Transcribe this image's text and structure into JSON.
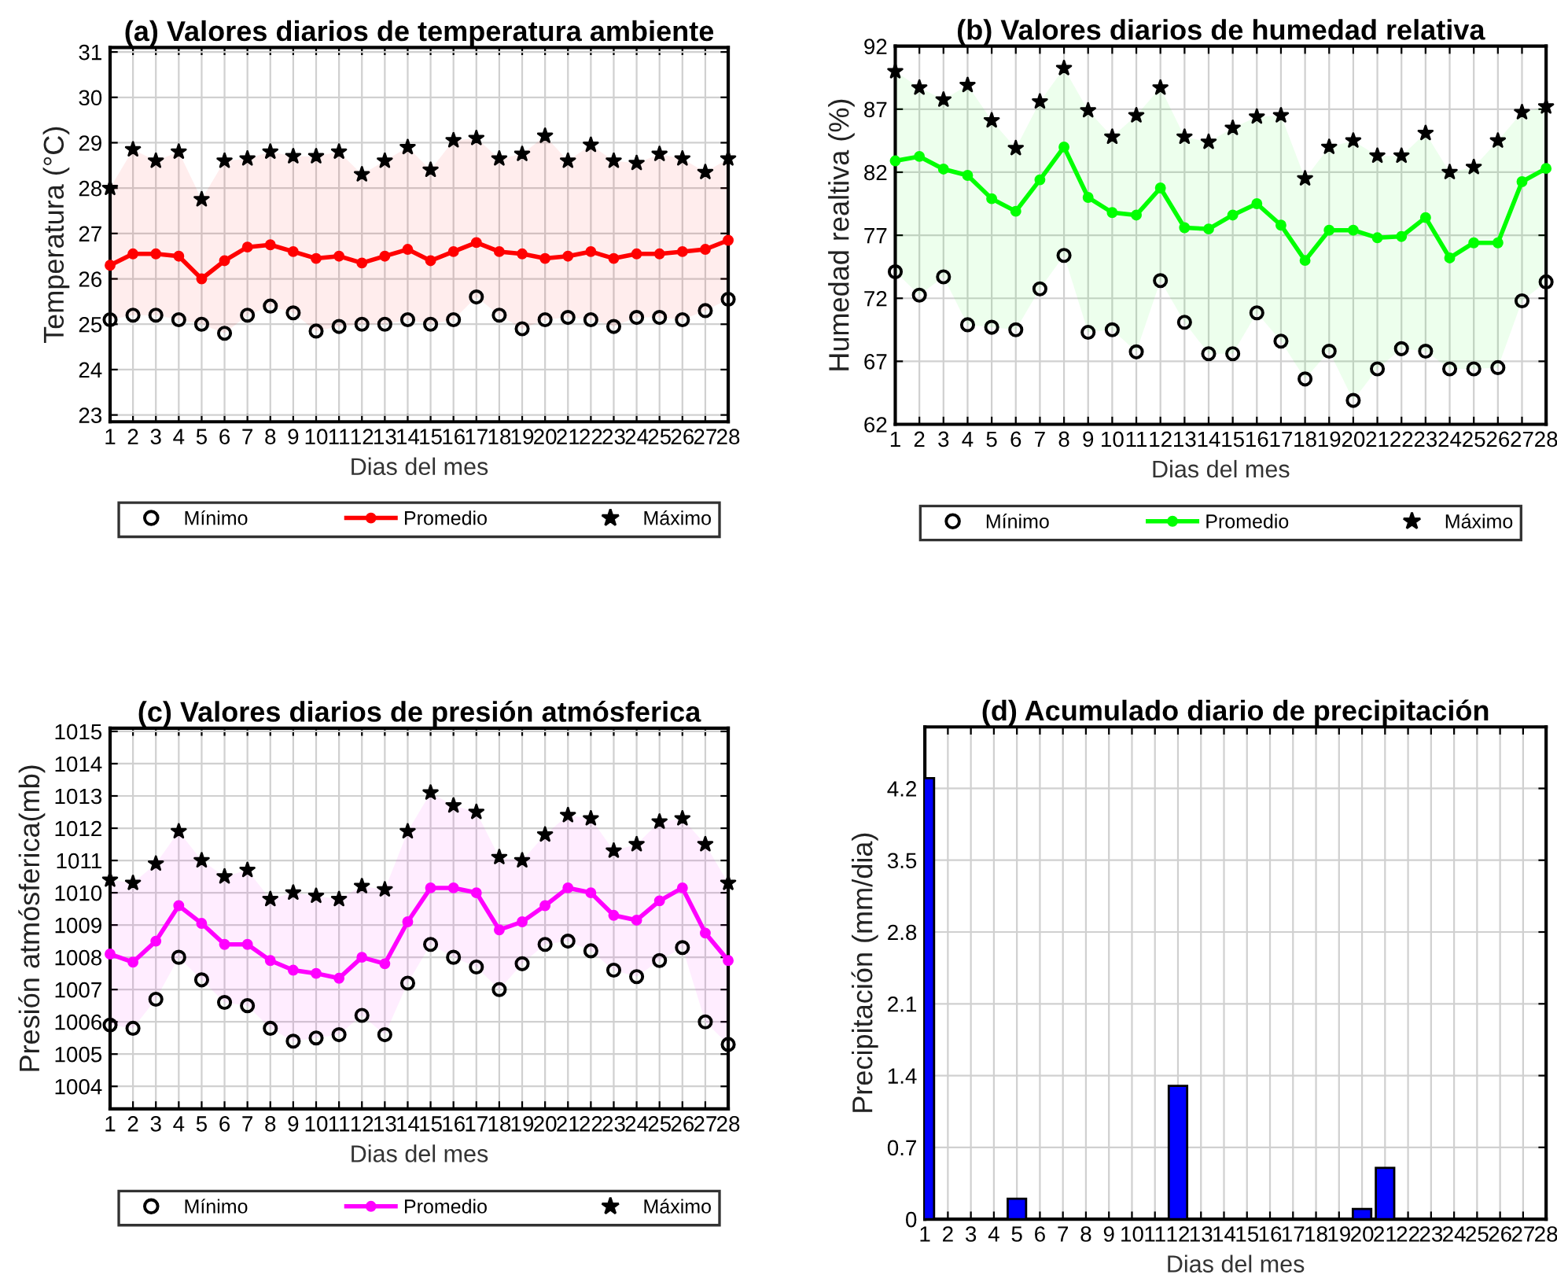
{
  "chart_data": [
    {
      "type": "line",
      "title": "(a) Valores diarios de temperatura ambiente",
      "xlabel": "Dias del mes",
      "ylabel": "Temperatura (°C)",
      "x": [
        1,
        2,
        3,
        4,
        5,
        6,
        7,
        8,
        9,
        10,
        11,
        12,
        13,
        14,
        15,
        16,
        17,
        18,
        19,
        20,
        21,
        22,
        23,
        24,
        25,
        26,
        27,
        28
      ],
      "xlim": [
        1,
        28
      ],
      "xticks": [
        1,
        2,
        3,
        4,
        5,
        6,
        7,
        8,
        9,
        10,
        11,
        12,
        13,
        14,
        15,
        16,
        17,
        18,
        19,
        20,
        21,
        22,
        23,
        24,
        25,
        26,
        27,
        28
      ],
      "ylim": [
        22.85,
        31.1
      ],
      "yticks": [
        23,
        24,
        25,
        26,
        27,
        28,
        29,
        30,
        31
      ],
      "grid": true,
      "legend": "bottom",
      "series": [
        {
          "name": "Mínimo",
          "type": "scatter",
          "marker": "circle",
          "color": "#000000",
          "values": [
            25.1,
            25.2,
            25.2,
            25.1,
            25.0,
            24.8,
            25.2,
            25.4,
            25.25,
            24.85,
            24.95,
            25.0,
            25.0,
            25.1,
            25.0,
            25.1,
            25.6,
            25.2,
            24.9,
            25.1,
            25.15,
            25.1,
            24.95,
            25.15,
            25.15,
            25.1,
            25.3,
            25.55
          ]
        },
        {
          "name": "Promedio",
          "type": "line",
          "marker": "circle",
          "color": "#ff0000",
          "values": [
            26.3,
            26.55,
            26.55,
            26.5,
            26.0,
            26.4,
            26.7,
            26.75,
            26.6,
            26.45,
            26.5,
            26.35,
            26.5,
            26.65,
            26.4,
            26.6,
            26.8,
            26.6,
            26.55,
            26.45,
            26.5,
            26.6,
            26.45,
            26.55,
            26.55,
            26.6,
            26.65,
            26.85
          ],
          "lower": [
            25.1,
            25.2,
            25.2,
            25.1,
            25.0,
            24.8,
            25.2,
            25.4,
            25.25,
            24.85,
            24.95,
            25.0,
            25.0,
            25.1,
            25.0,
            25.1,
            25.6,
            25.2,
            24.9,
            25.1,
            25.15,
            25.1,
            24.95,
            25.15,
            25.15,
            25.1,
            25.3,
            25.55
          ],
          "upper": [
            28.0,
            28.85,
            28.6,
            28.8,
            27.75,
            28.6,
            28.65,
            28.8,
            28.7,
            28.7,
            28.8,
            28.3,
            28.6,
            28.9,
            28.4,
            29.05,
            29.1,
            28.65,
            28.75,
            29.15,
            28.6,
            28.95,
            28.6,
            28.55,
            28.75,
            28.65,
            28.35,
            28.65
          ]
        },
        {
          "name": "Máximo",
          "type": "scatter",
          "marker": "star",
          "color": "#000000",
          "values": [
            28.0,
            28.85,
            28.6,
            28.8,
            27.75,
            28.6,
            28.65,
            28.8,
            28.7,
            28.7,
            28.8,
            28.3,
            28.6,
            28.9,
            28.4,
            29.05,
            29.1,
            28.65,
            28.75,
            29.15,
            28.6,
            28.95,
            28.6,
            28.55,
            28.75,
            28.65,
            28.35,
            28.65
          ]
        }
      ]
    },
    {
      "type": "line",
      "title": "(b) Valores diarios de humedad relativa",
      "xlabel": "Dias del mes",
      "ylabel": "Humedad realtiva (%)",
      "x": [
        1,
        2,
        3,
        4,
        5,
        6,
        7,
        8,
        9,
        10,
        11,
        12,
        13,
        14,
        15,
        16,
        17,
        18,
        19,
        20,
        21,
        22,
        23,
        24,
        25,
        26,
        27,
        28
      ],
      "xlim": [
        1,
        28
      ],
      "xticks": [
        1,
        2,
        3,
        4,
        5,
        6,
        7,
        8,
        9,
        10,
        11,
        12,
        13,
        14,
        15,
        16,
        17,
        18,
        19,
        20,
        21,
        22,
        23,
        24,
        25,
        26,
        27,
        28
      ],
      "ylim": [
        62,
        92
      ],
      "yticks": [
        62,
        67,
        72,
        77,
        82,
        87,
        92
      ],
      "grid": true,
      "legend": "bottom",
      "series": [
        {
          "name": "Mínimo",
          "type": "scatter",
          "marker": "circle",
          "color": "#000000",
          "values": [
            74.1,
            72.25,
            73.7,
            69.9,
            69.7,
            69.5,
            72.75,
            75.4,
            69.3,
            69.5,
            67.75,
            73.4,
            70.1,
            67.6,
            67.6,
            70.85,
            68.6,
            65.6,
            67.8,
            63.9,
            66.4,
            68.0,
            67.8,
            66.4,
            66.4,
            66.5,
            71.8,
            73.3
          ]
        },
        {
          "name": "Promedio",
          "type": "line",
          "marker": "circle",
          "color": "#00ff00",
          "values": [
            82.9,
            83.25,
            82.25,
            81.75,
            79.9,
            78.9,
            81.4,
            84.0,
            80.0,
            78.8,
            78.6,
            80.75,
            77.6,
            77.5,
            78.6,
            79.5,
            77.8,
            75.0,
            77.4,
            77.4,
            76.8,
            76.9,
            78.4,
            75.2,
            76.4,
            76.4,
            81.25,
            82.3
          ],
          "lower": [
            74.1,
            72.25,
            73.7,
            69.9,
            69.7,
            69.5,
            72.75,
            75.4,
            69.3,
            69.5,
            67.75,
            73.4,
            70.1,
            67.6,
            67.6,
            70.85,
            68.6,
            65.6,
            67.8,
            63.9,
            66.4,
            68.0,
            67.8,
            66.4,
            66.4,
            66.5,
            71.8,
            73.3
          ],
          "upper": [
            90.0,
            88.7,
            87.75,
            88.9,
            86.1,
            83.9,
            87.6,
            90.25,
            86.9,
            84.8,
            86.5,
            88.7,
            84.8,
            84.4,
            85.5,
            86.4,
            86.5,
            81.5,
            84.0,
            84.5,
            83.3,
            83.3,
            85.1,
            82.0,
            82.4,
            84.5,
            86.75,
            87.2
          ]
        },
        {
          "name": "Máximo",
          "type": "scatter",
          "marker": "star",
          "color": "#000000",
          "values": [
            90.0,
            88.7,
            87.75,
            88.9,
            86.1,
            83.9,
            87.6,
            90.25,
            86.9,
            84.8,
            86.5,
            88.7,
            84.8,
            84.4,
            85.5,
            86.4,
            86.5,
            81.5,
            84.0,
            84.5,
            83.3,
            83.3,
            85.1,
            82.0,
            82.4,
            84.5,
            86.75,
            87.2
          ]
        }
      ]
    },
    {
      "type": "line",
      "title": "(c) Valores diarios de presión atmósferica",
      "xlabel": "Dias del mes",
      "ylabel": "Presión atmósferica(mb)",
      "x": [
        1,
        2,
        3,
        4,
        5,
        6,
        7,
        8,
        9,
        10,
        11,
        12,
        13,
        14,
        15,
        16,
        17,
        18,
        19,
        20,
        21,
        22,
        23,
        24,
        25,
        26,
        27,
        28
      ],
      "xlim": [
        1,
        28
      ],
      "xticks": [
        1,
        2,
        3,
        4,
        5,
        6,
        7,
        8,
        9,
        10,
        11,
        12,
        13,
        14,
        15,
        16,
        17,
        18,
        19,
        20,
        21,
        22,
        23,
        24,
        25,
        26,
        27,
        28
      ],
      "ylim": [
        1003.3,
        1015.1
      ],
      "yticks": [
        1004,
        1005,
        1006,
        1007,
        1008,
        1009,
        1010,
        1011,
        1012,
        1013,
        1014,
        1015
      ],
      "grid": true,
      "legend": "bottom",
      "series": [
        {
          "name": "Mínimo",
          "type": "scatter",
          "marker": "circle",
          "color": "#000000",
          "values": [
            1005.9,
            1005.8,
            1006.7,
            1008.0,
            1007.3,
            1006.6,
            1006.5,
            1005.8,
            1005.4,
            1005.5,
            1005.6,
            1006.2,
            1005.6,
            1007.2,
            1008.4,
            1008.0,
            1007.7,
            1007.0,
            1007.8,
            1008.4,
            1008.5,
            1008.2,
            1007.6,
            1007.4,
            1007.9,
            1008.3,
            1006.0,
            1005.3
          ]
        },
        {
          "name": "Promedio",
          "type": "line",
          "marker": "circle",
          "color": "#ff00ff",
          "values": [
            1008.1,
            1007.85,
            1008.5,
            1009.6,
            1009.05,
            1008.4,
            1008.4,
            1007.9,
            1007.6,
            1007.5,
            1007.35,
            1008.0,
            1007.8,
            1009.1,
            1010.15,
            1010.15,
            1010.0,
            1008.85,
            1009.1,
            1009.6,
            1010.15,
            1010.0,
            1009.3,
            1009.15,
            1009.75,
            1010.15,
            1008.75,
            1007.9
          ],
          "lower": [
            1005.9,
            1005.8,
            1006.7,
            1008.0,
            1007.3,
            1006.6,
            1006.5,
            1005.8,
            1005.4,
            1005.5,
            1005.6,
            1006.2,
            1005.6,
            1007.2,
            1008.4,
            1008.0,
            1007.7,
            1007.0,
            1007.8,
            1008.4,
            1008.5,
            1008.2,
            1007.6,
            1007.4,
            1007.9,
            1008.3,
            1006.0,
            1005.3
          ],
          "upper": [
            1010.4,
            1010.3,
            1010.9,
            1011.9,
            1011.0,
            1010.5,
            1010.7,
            1009.8,
            1010.0,
            1009.9,
            1009.8,
            1010.2,
            1010.1,
            1011.9,
            1013.1,
            1012.7,
            1012.5,
            1011.1,
            1011.0,
            1011.8,
            1012.4,
            1012.3,
            1011.3,
            1011.5,
            1012.2,
            1012.3,
            1011.5,
            1010.3
          ]
        },
        {
          "name": "Máximo",
          "type": "scatter",
          "marker": "star",
          "color": "#000000",
          "values": [
            1010.4,
            1010.3,
            1010.9,
            1011.9,
            1011.0,
            1010.5,
            1010.7,
            1009.8,
            1010.0,
            1009.9,
            1009.8,
            1010.2,
            1010.1,
            1011.9,
            1013.1,
            1012.7,
            1012.5,
            1011.1,
            1011.0,
            1011.8,
            1012.4,
            1012.3,
            1011.3,
            1011.5,
            1012.2,
            1012.3,
            1011.5,
            1010.3
          ]
        }
      ]
    },
    {
      "type": "bar",
      "title": "(d) Acumulado diario de precipitación",
      "xlabel": "Dias del mes",
      "ylabel": "Precipitación (mm/dia)",
      "x": [
        1,
        2,
        3,
        4,
        5,
        6,
        7,
        8,
        9,
        10,
        11,
        12,
        13,
        14,
        15,
        16,
        17,
        18,
        19,
        20,
        21,
        22,
        23,
        24,
        25,
        26,
        27,
        28
      ],
      "xlim": [
        1,
        28
      ],
      "xticks": [
        1,
        2,
        3,
        4,
        5,
        6,
        7,
        8,
        9,
        10,
        11,
        12,
        13,
        14,
        15,
        16,
        17,
        18,
        19,
        20,
        21,
        22,
        23,
        24,
        25,
        26,
        27,
        28
      ],
      "ylim": [
        0,
        4.8
      ],
      "yticks": [
        0,
        0.7,
        1.4,
        2.1,
        2.8,
        3.5,
        4.2
      ],
      "grid": true,
      "series": [
        {
          "color": "#0000ff",
          "values": [
            4.3,
            0,
            0,
            0,
            0.2,
            0,
            0,
            0,
            0,
            0,
            0,
            1.3,
            0,
            0,
            0,
            0,
            0,
            0,
            0,
            0.1,
            0.5,
            0,
            0,
            0,
            0,
            0,
            0,
            0
          ]
        }
      ]
    }
  ]
}
